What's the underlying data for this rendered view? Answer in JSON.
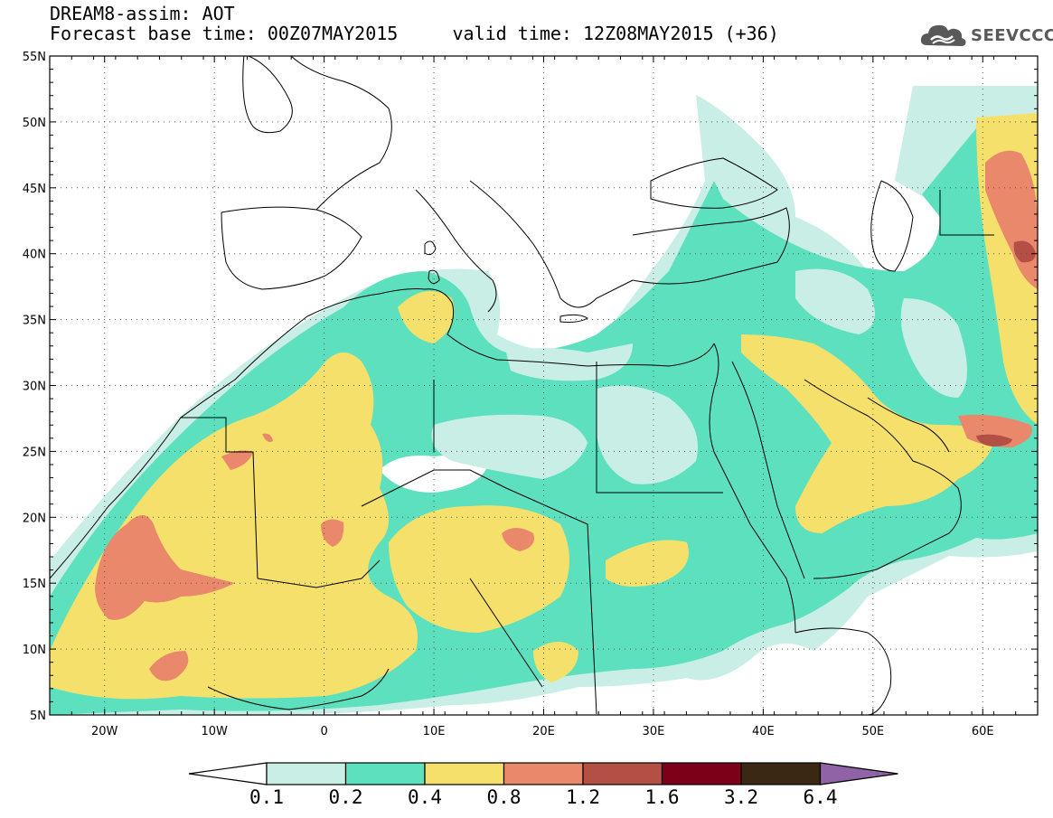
{
  "header": {
    "title": "DREAM8-assim: AOT",
    "subtitle": "Forecast base time: 00Z07MAY2015     valid time: 12Z08MAY2015 (+36)",
    "logo_text": "SEEVCCC",
    "logo_icon": "cloud-icon"
  },
  "map": {
    "lat_ticks": [
      "55N",
      "50N",
      "45N",
      "40N",
      "35N",
      "30N",
      "25N",
      "20N",
      "15N",
      "10N",
      "5N"
    ],
    "lon_ticks": [
      "20W",
      "10W",
      "0",
      "10E",
      "20E",
      "30E",
      "40E",
      "50E",
      "60E"
    ],
    "lon_range": [
      -25,
      65
    ],
    "lat_range": [
      5,
      55
    ],
    "grid": "dotted"
  },
  "colorbar": {
    "labels": [
      "0.1",
      "0.2",
      "0.4",
      "0.8",
      "1.2",
      "1.6",
      "3.2",
      "6.4"
    ],
    "colors": [
      "#ffffff",
      "#c9eee6",
      "#5de0bd",
      "#f6e06c",
      "#e9886a",
      "#b34f44",
      "#7d0019",
      "#3a2714",
      "#8f63a5"
    ]
  }
}
